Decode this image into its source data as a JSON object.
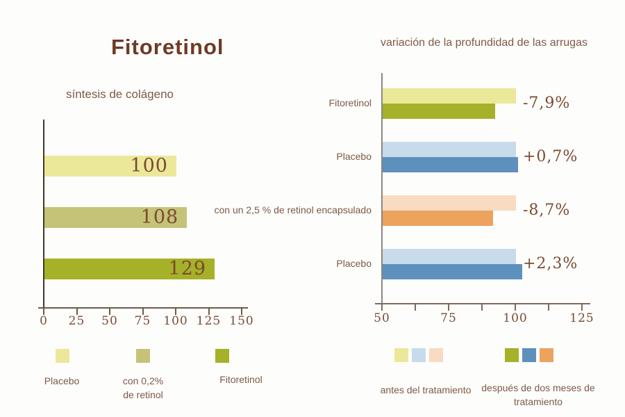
{
  "page": {
    "title": "Fitoretinol"
  },
  "colors": {
    "text_slab": "#7a4a31",
    "text_sans": "#7d5a45",
    "title": "#6f3a23",
    "axis_left_v": "#453428",
    "axis_left_h": "#6b5a4b",
    "axis_right_v": "#8b8781",
    "axis_right_h": "#7c6b5c",
    "background": "#fdfdfc"
  },
  "chart_data": [
    {
      "type": "bar",
      "orientation": "horizontal",
      "title": "síntesis de colágeno",
      "categories": [
        "Placebo",
        "con 0,2% de retinol",
        "Fitoretinol"
      ],
      "values": [
        100,
        108,
        129
      ],
      "value_labels": [
        "100",
        "108",
        "129"
      ],
      "bar_colors": [
        "#ebe89a",
        "#c5c377",
        "#a5b128"
      ],
      "xlim": [
        0,
        150
      ],
      "xticks": [
        0,
        25,
        50,
        75,
        100,
        125,
        150
      ],
      "grid": false,
      "legend_position": "bottom",
      "legend": [
        {
          "label": "Placebo",
          "color": "#ebe89a"
        },
        {
          "label": "con 0,2%\nde retinol",
          "color": "#c5c377"
        },
        {
          "label": "Fitoretinol",
          "color": "#a5b128"
        }
      ]
    },
    {
      "type": "bar",
      "orientation": "horizontal",
      "grouped": true,
      "title": "variación de la profundidad de las arrugas",
      "categories": [
        "Fitoretinol",
        "Placebo",
        "con un 2,5 % de retinol encapsulado",
        "Placebo"
      ],
      "series": [
        {
          "name": "antes del tratamiento",
          "values": [
            100,
            100,
            100,
            100
          ]
        },
        {
          "name": "después de dos meses de tratamiento",
          "values": [
            92.1,
            100.7,
            91.3,
            102.3
          ]
        }
      ],
      "change_labels": [
        "-7,9%",
        "+0,7%",
        "-8,7%",
        "+2,3%"
      ],
      "group_colors": [
        {
          "before": "#ebe89a",
          "after": "#a5b128"
        },
        {
          "before": "#c8dbea",
          "after": "#5e90bd"
        },
        {
          "before": "#f8dbc1",
          "after": "#eda25e"
        },
        {
          "before": "#c8dbea",
          "after": "#5e90bd"
        }
      ],
      "xlim": [
        50,
        125
      ],
      "xticks": [
        50,
        75,
        100,
        125
      ],
      "minor_xticks": [
        62.5,
        87.5,
        112.5
      ],
      "grid": false,
      "legend_position": "bottom",
      "legend": [
        {
          "label": "antes del tratamiento",
          "colors": [
            "#ebe89a",
            "#c8dbea",
            "#f8dbc1"
          ]
        },
        {
          "label": "después de dos meses de\ntratamiento",
          "colors": [
            "#a5b128",
            "#5e90bd",
            "#eda25e"
          ]
        }
      ]
    }
  ]
}
